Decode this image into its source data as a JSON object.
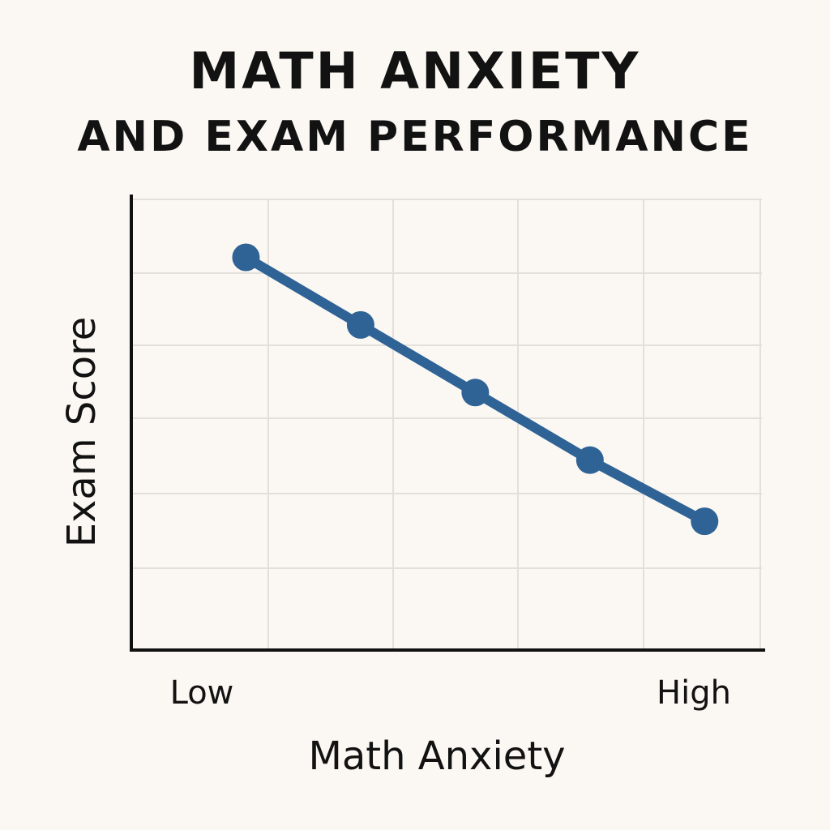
{
  "chart_data": {
    "type": "line",
    "title": "MATH ANXIETY",
    "subtitle": "AND EXAM PERFORMANCE",
    "xlabel": "Math Anxiety",
    "ylabel": "Exam Score",
    "x_tick_labels": [
      "Low",
      "High"
    ],
    "x": [
      1,
      2,
      3,
      4,
      5
    ],
    "series": [
      {
        "values": [
          5.1,
          4.05,
          3.0,
          1.95,
          1.0
        ]
      }
    ],
    "xlim": [
      0,
      5.5
    ],
    "ylim": [
      -1,
      6
    ],
    "grid": true,
    "legend": "none",
    "colors": {
      "line": "#2f6396",
      "point": "#2f6396",
      "grid": "#e3e0da",
      "axis": "#111111",
      "background": "#fbf8f3"
    }
  }
}
